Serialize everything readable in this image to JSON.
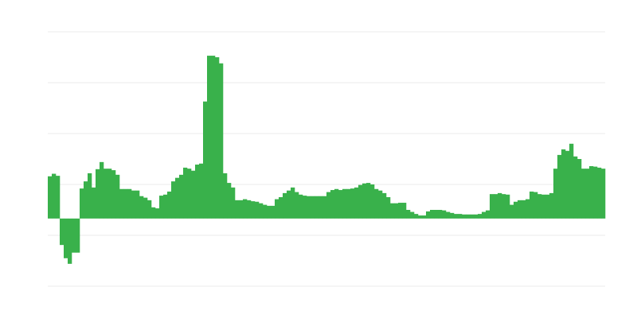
{
  "chart_data": {
    "type": "bar",
    "title": "",
    "xlabel": "",
    "ylabel": "",
    "ylim": [
      -13.3,
      36.7
    ],
    "gridlines": [
      -13.3,
      -3.3,
      6.7,
      16.7,
      26.7,
      36.7
    ],
    "grid": true,
    "bar_color": "#39b14b",
    "grid_color": "#ebebeb",
    "values": [
      8.3,
      8.8,
      8.4,
      -5.2,
      -7.8,
      -8.9,
      -6.7,
      -6.7,
      5.9,
      7.3,
      8.9,
      6.1,
      9.7,
      11.1,
      9.8,
      9.8,
      9.5,
      8.6,
      5.8,
      5.8,
      5.8,
      5.5,
      5.5,
      4.4,
      4.1,
      3.6,
      2.2,
      2.0,
      4.5,
      4.7,
      5.3,
      7.3,
      8.0,
      8.6,
      10.0,
      9.8,
      9.4,
      10.6,
      10.8,
      23.0,
      32.0,
      32.0,
      31.7,
      30.5,
      8.9,
      7.0,
      6.1,
      3.6,
      3.6,
      3.8,
      3.6,
      3.4,
      3.3,
      3.0,
      2.7,
      2.5,
      2.5,
      3.8,
      4.2,
      5.0,
      5.5,
      6.1,
      5.2,
      4.7,
      4.5,
      4.4,
      4.4,
      4.4,
      4.4,
      4.4,
      5.2,
      5.6,
      5.8,
      5.6,
      5.8,
      5.8,
      5.9,
      6.1,
      6.6,
      6.9,
      7.0,
      6.7,
      5.8,
      5.5,
      5.0,
      4.2,
      3.0,
      3.0,
      3.1,
      3.1,
      1.7,
      1.3,
      0.9,
      0.6,
      0.6,
      1.4,
      1.7,
      1.7,
      1.7,
      1.6,
      1.3,
      1.1,
      0.9,
      0.9,
      0.8,
      0.8,
      0.8,
      0.8,
      0.9,
      1.3,
      1.6,
      4.8,
      4.8,
      5.0,
      4.8,
      4.7,
      2.7,
      3.3,
      3.6,
      3.6,
      3.8,
      5.3,
      5.2,
      4.8,
      4.7,
      4.7,
      5.0,
      9.8,
      12.5,
      13.6,
      13.3,
      14.7,
      12.2,
      11.7,
      9.8,
      9.8,
      10.3,
      10.2,
      10.0,
      9.8
    ]
  }
}
